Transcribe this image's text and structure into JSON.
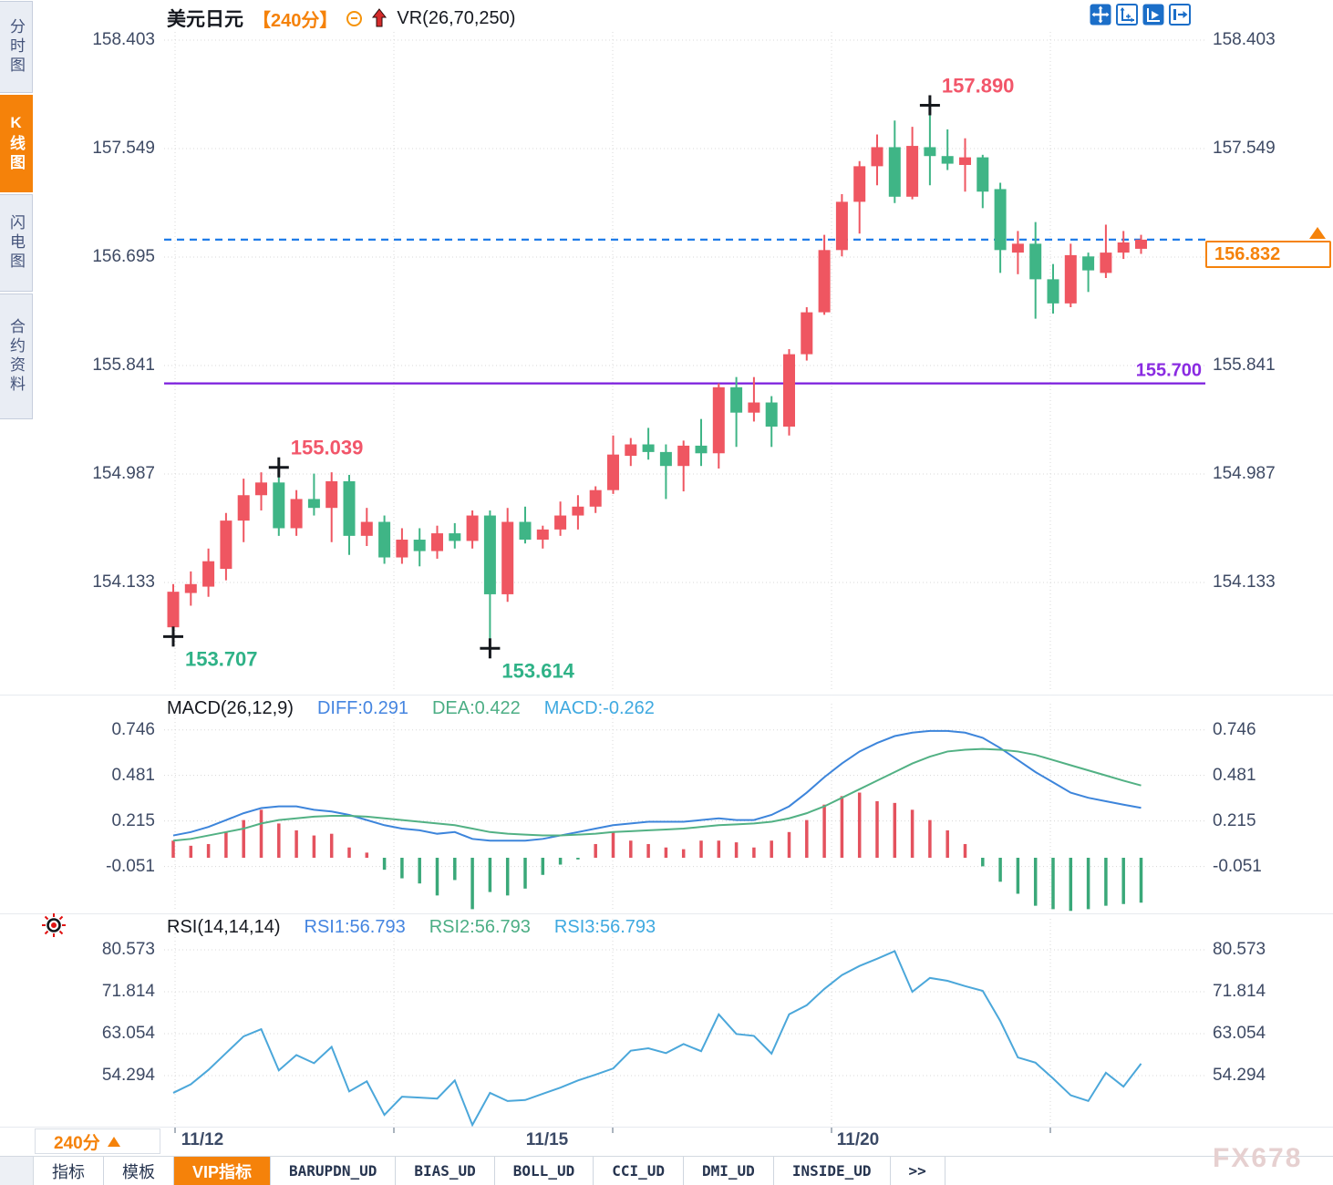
{
  "title": {
    "symbol": "美元日元",
    "interval": "【240分】",
    "vr": "VR(26,70,250)"
  },
  "sidebar": {
    "tabs": [
      {
        "label": "分时图",
        "active": false
      },
      {
        "label": "K线图",
        "active": true
      },
      {
        "label": "闪电图",
        "active": false
      },
      {
        "label": "合约资料",
        "active": false
      }
    ]
  },
  "toolbar": {
    "icons": [
      "pan-crosshair-icon",
      "axis-scale-icon",
      "auto-scroll-icon",
      "dock-right-icon"
    ]
  },
  "quote": {
    "last": "156.832"
  },
  "indicators": {
    "macd": {
      "title": "MACD(26,12,9)",
      "diff_label": "DIFF:0.291",
      "dea_label": "DEA:0.422",
      "macd_label": "MACD:-0.262"
    },
    "rsi": {
      "title": "RSI(14,14,14)",
      "rsi1_label": "RSI1:56.793",
      "rsi2_label": "RSI2:56.793",
      "rsi3_label": "RSI3:56.793"
    }
  },
  "footer": {
    "interval_label": "240分",
    "watermark": "FX678",
    "tabs": [
      {
        "label": "指标",
        "active": false,
        "mono": false
      },
      {
        "label": "模板",
        "active": false,
        "mono": false
      },
      {
        "label": "VIP指标",
        "active": true,
        "mono": false
      },
      {
        "label": "BARUPDN_UD",
        "active": false,
        "mono": true
      },
      {
        "label": "BIAS_UD",
        "active": false,
        "mono": true
      },
      {
        "label": "BOLL_UD",
        "active": false,
        "mono": true
      },
      {
        "label": "CCI_UD",
        "active": false,
        "mono": true
      },
      {
        "label": "DMI_UD",
        "active": false,
        "mono": true
      },
      {
        "label": "INSIDE_UD",
        "active": false,
        "mono": true
      },
      {
        "label": ">>",
        "active": false,
        "mono": true
      }
    ]
  },
  "chart_data": {
    "type": "candlestick",
    "symbol": "美元日元 (USD/JPY)",
    "interval": "240分",
    "x_axis": {
      "labels": [
        {
          "text": "11/12",
          "x": 222
        },
        {
          "text": "11/15",
          "x": 600
        },
        {
          "text": "11/20",
          "x": 941
        }
      ],
      "grid_x": [
        192,
        432,
        672,
        912,
        1152
      ]
    },
    "main": {
      "yticks": [
        "158.403",
        "157.549",
        "156.695",
        "155.841",
        "154.987",
        "154.133"
      ],
      "candles": [
        [
          153.78,
          154.12,
          153.707,
          154.06
        ],
        [
          154.05,
          154.22,
          153.95,
          154.12
        ],
        [
          154.1,
          154.4,
          154.02,
          154.3
        ],
        [
          154.24,
          154.68,
          154.15,
          154.62
        ],
        [
          154.62,
          154.95,
          154.45,
          154.82
        ],
        [
          154.82,
          155.0,
          154.7,
          154.92
        ],
        [
          154.92,
          155.039,
          154.5,
          154.56
        ],
        [
          154.56,
          154.86,
          154.5,
          154.79
        ],
        [
          154.79,
          154.99,
          154.66,
          154.72
        ],
        [
          154.72,
          155.0,
          154.45,
          154.93
        ],
        [
          154.93,
          154.98,
          154.35,
          154.5
        ],
        [
          154.5,
          154.72,
          154.42,
          154.61
        ],
        [
          154.61,
          154.66,
          154.28,
          154.33
        ],
        [
          154.33,
          154.56,
          154.28,
          154.47
        ],
        [
          154.47,
          154.56,
          154.26,
          154.38
        ],
        [
          154.38,
          154.58,
          154.32,
          154.52
        ],
        [
          154.52,
          154.6,
          154.4,
          154.46
        ],
        [
          154.46,
          154.7,
          154.4,
          154.66
        ],
        [
          154.66,
          154.7,
          153.614,
          154.04
        ],
        [
          154.04,
          154.72,
          153.98,
          154.61
        ],
        [
          154.61,
          154.73,
          154.44,
          154.47
        ],
        [
          154.47,
          154.58,
          154.4,
          154.55
        ],
        [
          154.55,
          154.77,
          154.5,
          154.66
        ],
        [
          154.66,
          154.82,
          154.55,
          154.73
        ],
        [
          154.73,
          154.89,
          154.68,
          154.86
        ],
        [
          154.86,
          155.29,
          154.83,
          155.14
        ],
        [
          155.13,
          155.27,
          155.05,
          155.22
        ],
        [
          155.22,
          155.35,
          155.1,
          155.16
        ],
        [
          155.16,
          155.22,
          154.79,
          155.05
        ],
        [
          155.05,
          155.25,
          154.85,
          155.21
        ],
        [
          155.21,
          155.42,
          155.05,
          155.15
        ],
        [
          155.15,
          155.7,
          155.03,
          155.67
        ],
        [
          155.67,
          155.75,
          155.2,
          155.47
        ],
        [
          155.47,
          155.75,
          155.4,
          155.55
        ],
        [
          155.55,
          155.6,
          155.2,
          155.36
        ],
        [
          155.36,
          155.97,
          155.29,
          155.93
        ],
        [
          155.93,
          156.3,
          155.88,
          156.26
        ],
        [
          156.26,
          156.87,
          156.24,
          156.75
        ],
        [
          156.75,
          157.19,
          156.7,
          157.13
        ],
        [
          157.13,
          157.45,
          156.88,
          157.41
        ],
        [
          157.41,
          157.66,
          157.26,
          157.56
        ],
        [
          157.56,
          157.77,
          157.12,
          157.17
        ],
        [
          157.17,
          157.72,
          157.15,
          157.57
        ],
        [
          157.56,
          157.89,
          157.26,
          157.49
        ],
        [
          157.49,
          157.7,
          157.38,
          157.43
        ],
        [
          157.42,
          157.63,
          157.21,
          157.48
        ],
        [
          157.48,
          157.5,
          157.08,
          157.21
        ],
        [
          157.23,
          157.28,
          156.57,
          156.75
        ],
        [
          156.73,
          156.9,
          156.56,
          156.8
        ],
        [
          156.8,
          156.97,
          156.21,
          156.52
        ],
        [
          156.52,
          156.64,
          156.25,
          156.33
        ],
        [
          156.33,
          156.8,
          156.3,
          156.71
        ],
        [
          156.7,
          156.73,
          156.42,
          156.59
        ],
        [
          156.57,
          156.95,
          156.53,
          156.73
        ],
        [
          156.73,
          156.9,
          156.68,
          156.81
        ],
        [
          156.76,
          156.87,
          156.72,
          156.832
        ]
      ],
      "annotations": [
        {
          "index": 0,
          "price": 153.707,
          "text": "153.707",
          "side": "below",
          "color": "#2fb287"
        },
        {
          "index": 6,
          "price": 155.039,
          "text": "155.039",
          "side": "above",
          "color": "#f2566a"
        },
        {
          "index": 18,
          "price": 153.614,
          "text": "153.614",
          "side": "below",
          "color": "#2fb287"
        },
        {
          "index": 43,
          "price": 157.89,
          "text": "157.890",
          "side": "above",
          "color": "#f2566a"
        }
      ],
      "hlines": [
        {
          "price": 155.7,
          "label": "155.700",
          "color": "#7b1ddd",
          "style": "solid"
        },
        {
          "price": 156.832,
          "label": "",
          "color": "#1f7ce8",
          "style": "dashed"
        }
      ]
    },
    "macd": {
      "yticks": [
        "0.746",
        "0.481",
        "0.215",
        "-0.051"
      ],
      "diff": [
        0.13,
        0.15,
        0.18,
        0.22,
        0.26,
        0.29,
        0.3,
        0.3,
        0.28,
        0.27,
        0.25,
        0.22,
        0.19,
        0.17,
        0.16,
        0.14,
        0.15,
        0.11,
        0.1,
        0.1,
        0.1,
        0.11,
        0.13,
        0.15,
        0.17,
        0.19,
        0.2,
        0.21,
        0.21,
        0.21,
        0.22,
        0.23,
        0.22,
        0.22,
        0.25,
        0.3,
        0.38,
        0.47,
        0.55,
        0.62,
        0.67,
        0.71,
        0.73,
        0.74,
        0.74,
        0.73,
        0.7,
        0.64,
        0.57,
        0.5,
        0.44,
        0.38,
        0.35,
        0.33,
        0.31,
        0.291
      ],
      "dea": [
        0.1,
        0.11,
        0.13,
        0.15,
        0.17,
        0.2,
        0.22,
        0.23,
        0.24,
        0.245,
        0.245,
        0.24,
        0.23,
        0.22,
        0.21,
        0.2,
        0.19,
        0.17,
        0.15,
        0.14,
        0.135,
        0.13,
        0.13,
        0.135,
        0.14,
        0.15,
        0.155,
        0.16,
        0.165,
        0.17,
        0.18,
        0.19,
        0.195,
        0.2,
        0.21,
        0.23,
        0.26,
        0.3,
        0.35,
        0.4,
        0.45,
        0.5,
        0.55,
        0.59,
        0.62,
        0.63,
        0.635,
        0.63,
        0.62,
        0.6,
        0.57,
        0.54,
        0.51,
        0.48,
        0.45,
        0.422
      ],
      "hist": [
        0.1,
        0.07,
        0.08,
        0.15,
        0.22,
        0.28,
        0.2,
        0.16,
        0.13,
        0.14,
        0.06,
        0.03,
        -0.07,
        -0.12,
        -0.15,
        -0.22,
        -0.13,
        -0.3,
        -0.2,
        -0.22,
        -0.18,
        -0.1,
        -0.04,
        -0.01,
        0.08,
        0.15,
        0.1,
        0.08,
        0.06,
        0.05,
        0.1,
        0.1,
        0.09,
        0.06,
        0.1,
        0.15,
        0.22,
        0.31,
        0.36,
        0.38,
        0.33,
        0.32,
        0.28,
        0.22,
        0.16,
        0.08,
        -0.05,
        -0.14,
        -0.21,
        -0.28,
        -0.3,
        -0.31,
        -0.3,
        -0.28,
        -0.27,
        -0.262
      ]
    },
    "rsi": {
      "yticks": [
        "80.573",
        "71.814",
        "63.054",
        "54.294"
      ],
      "values": [
        50.7,
        52.5,
        55.5,
        59.0,
        62.5,
        64.0,
        55.4,
        58.6,
        56.9,
        60.3,
        51.0,
        53.1,
        46.1,
        49.9,
        49.7,
        49.5,
        53.3,
        44.0,
        50.7,
        49.0,
        49.2,
        50.5,
        51.8,
        53.3,
        54.5,
        55.8,
        59.5,
        60.0,
        59.0,
        60.9,
        59.4,
        67.1,
        63.0,
        62.6,
        58.9,
        67.1,
        69.0,
        72.4,
        75.3,
        77.2,
        78.7,
        80.3,
        71.8,
        74.7,
        74.1,
        73.0,
        72.0,
        65.7,
        58.1,
        57.0,
        53.7,
        50.2,
        49.0,
        54.9,
        52.0,
        56.793
      ]
    },
    "colors": {
      "up": "#ef5661",
      "down": "#3fb586",
      "hist_up": "#e4525e",
      "hist_down": "#3aa879",
      "diff": "#3d85db",
      "dea": "#52b184",
      "rsi": "#4ba7da",
      "grid": "#d8d8d8",
      "axis_text": "#3e4a64",
      "dashed_line": "#1f7ce8",
      "support_line": "#7b1ddd",
      "support_label": "#8a2be2",
      "ann_up": "#f2566a",
      "ann_down": "#2fb287",
      "accent": "#f5820a"
    }
  }
}
